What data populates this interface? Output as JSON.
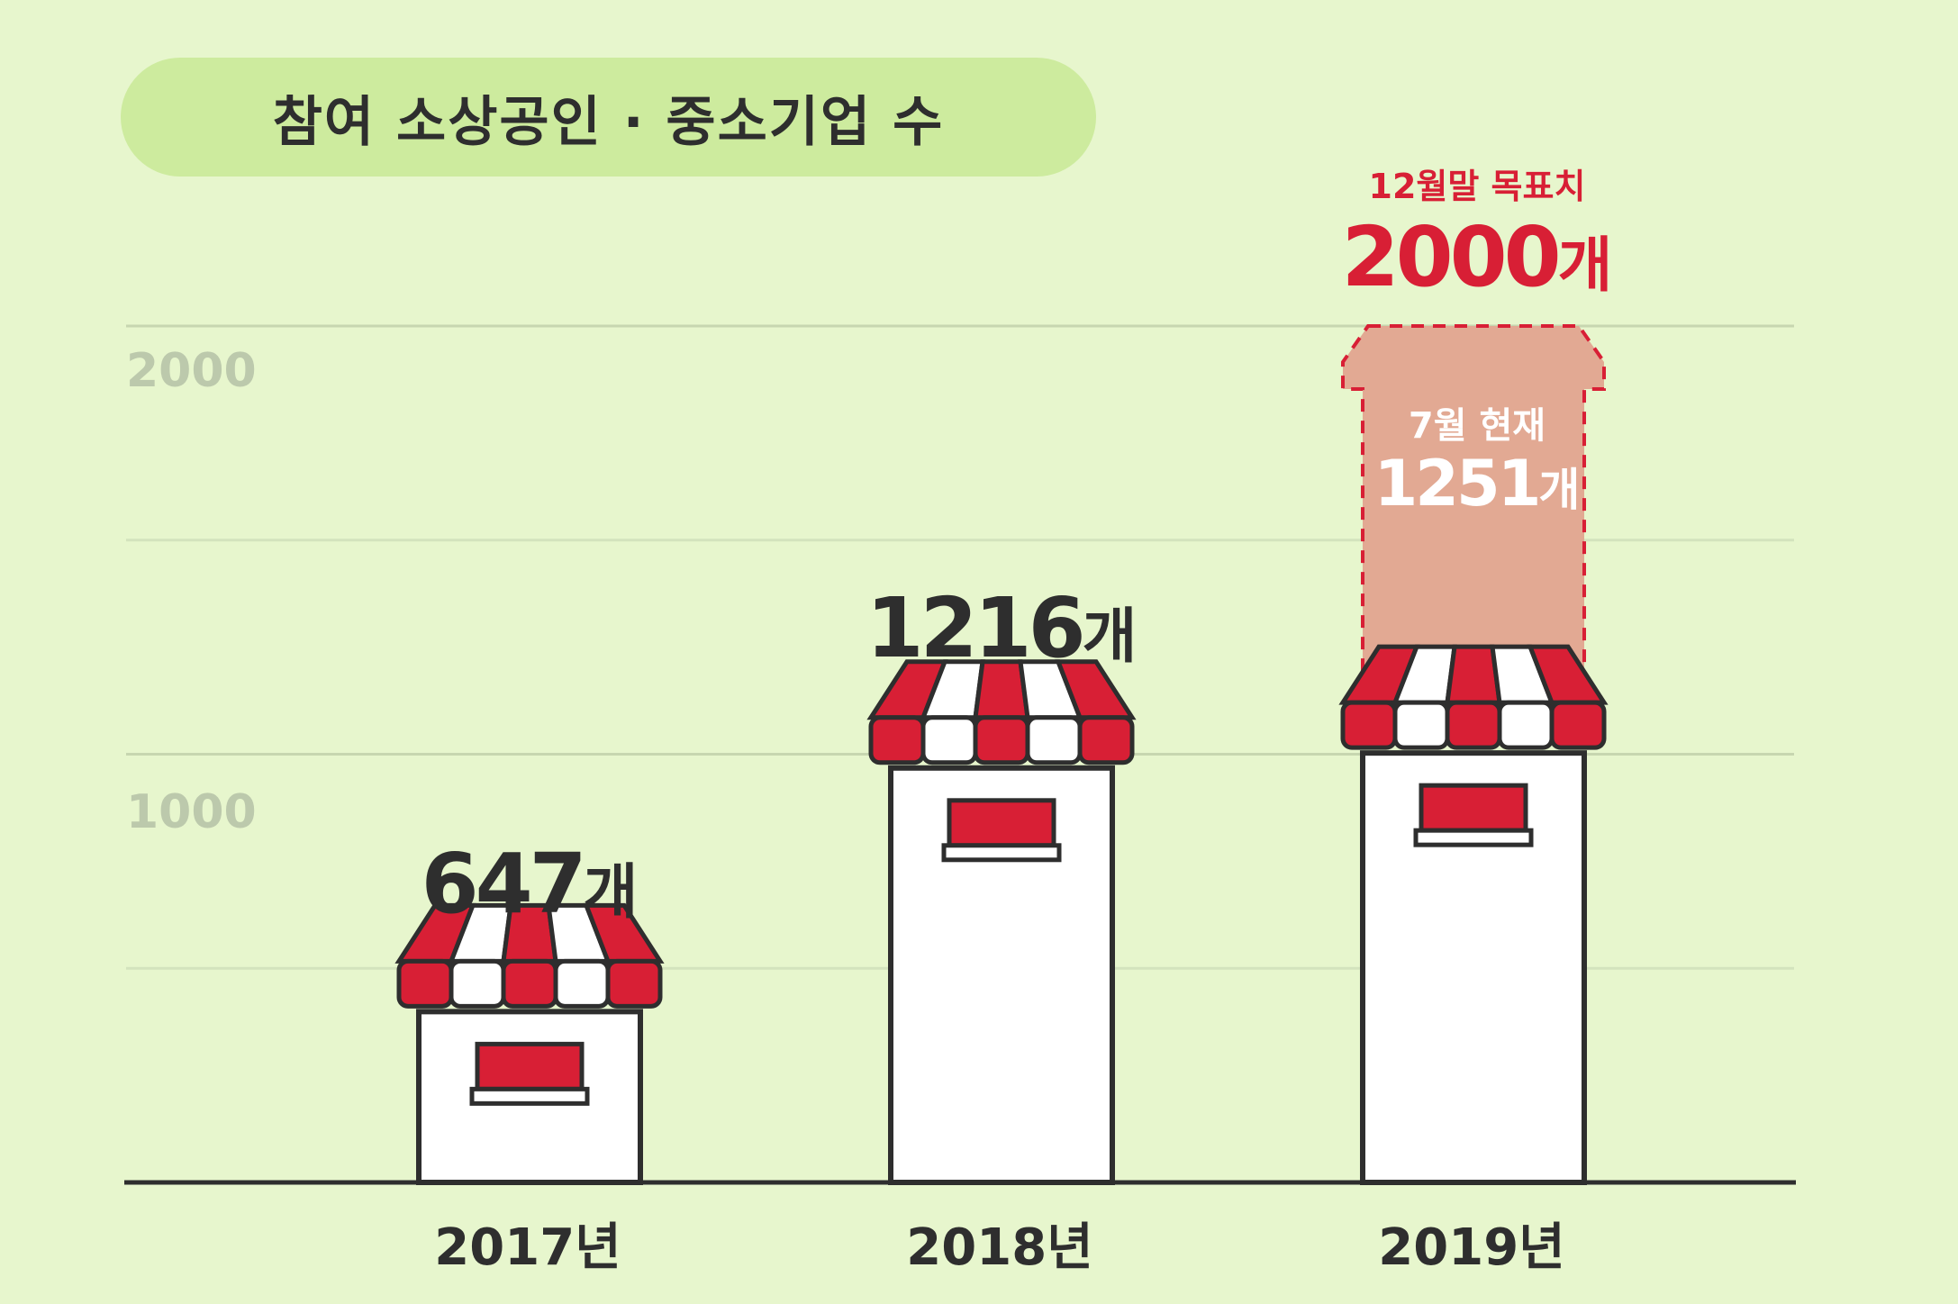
{
  "title": "참여 소상공인 · 중소기업 수",
  "colors": {
    "background": "#e7f6cd",
    "title_pill": "#cdeb9e",
    "awning_red": "#d81f35",
    "outline": "#2e2e2e",
    "target_fill": "#e2a993",
    "target_text": "#d81f35"
  },
  "unit": "개",
  "y_ticks": [
    {
      "value": 1000,
      "label": "1000"
    },
    {
      "value": 2000,
      "label": "2000"
    }
  ],
  "bars": [
    {
      "year": "2017년",
      "value": 647,
      "label": "647"
    },
    {
      "year": "2018년",
      "value": 1216,
      "label": "1216"
    },
    {
      "year": "2019년",
      "value": 1251,
      "label": "1251"
    }
  ],
  "target": {
    "caption": "12월말 목표치",
    "value": 2000,
    "label": "2000"
  },
  "current": {
    "caption": "7월 현재",
    "label": "1251"
  },
  "chart_data": {
    "type": "bar",
    "title": "참여 소상공인 · 중소기업 수",
    "categories": [
      "2017년",
      "2018년",
      "2019년"
    ],
    "values": [
      647,
      1216,
      1251
    ],
    "target": {
      "category": "2019년",
      "value": 2000,
      "label": "12월말 목표치"
    },
    "ylim": [
      0,
      2000
    ],
    "yticks": [
      1000,
      2000
    ],
    "grid": true,
    "legend": "none"
  }
}
